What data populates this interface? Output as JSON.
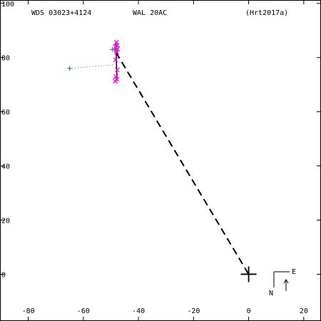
{
  "chart_data": {
    "type": "scatter",
    "header": {
      "left": "WDS 03023+4124",
      "middle": "WAL  20AC",
      "right": "(Hrt2017a)"
    },
    "xlim": [
      -90,
      26
    ],
    "ylim": [
      -17,
      101
    ],
    "x_ticks": [
      -80,
      -60,
      -40,
      -20,
      0,
      20
    ],
    "y_ticks": [
      100,
      80,
      60,
      40,
      20,
      0
    ],
    "x_tick_labels": [
      "-80",
      "-60",
      "-40",
      "-20",
      "0",
      "20"
    ],
    "y_tick_labels": [
      "100",
      "80",
      "60",
      "40",
      "20",
      "0"
    ],
    "primary": [
      0,
      0
    ],
    "orbit_line": [
      [
        -47.8,
        71.5
      ],
      [
        -48.2,
        85.5
      ]
    ],
    "node_line": [
      [
        -48.2,
        82.0
      ],
      [
        0,
        0
      ]
    ],
    "residual_line": [
      [
        -65,
        76
      ],
      [
        -48.6,
        77.4
      ]
    ],
    "green_points": [
      [
        -65,
        76
      ],
      [
        -49.5,
        83
      ],
      [
        -48.3,
        84.8
      ],
      [
        -47.8,
        84.2
      ],
      [
        -48.2,
        82.6
      ],
      [
        -48.0,
        72.4
      ]
    ],
    "magenta_points": [
      [
        -48.0,
        85.6
      ],
      [
        -47.8,
        84.5
      ],
      [
        -48.4,
        83.9
      ],
      [
        -47.6,
        83.2
      ],
      [
        -48.1,
        82.7
      ],
      [
        -47.9,
        82.0
      ],
      [
        -48.3,
        79.2
      ],
      [
        -47.7,
        75.5
      ],
      [
        -48.2,
        73.0
      ],
      [
        -47.9,
        72.0
      ],
      [
        -48.4,
        71.3
      ]
    ],
    "compass": {
      "east": "E",
      "north": "N"
    }
  }
}
